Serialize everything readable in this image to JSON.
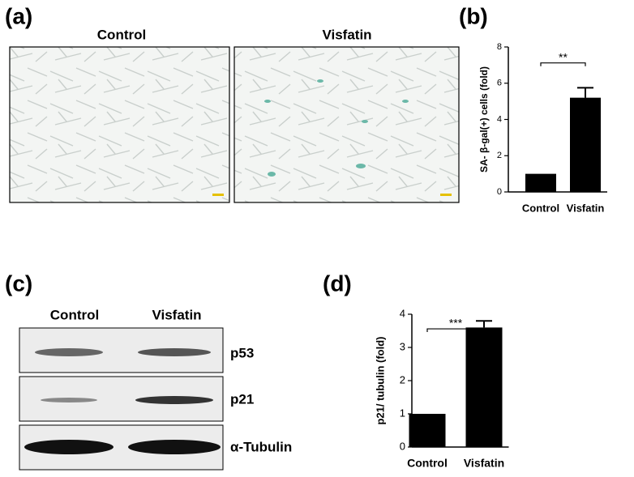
{
  "figure": {
    "panel_labels": [
      "(a)",
      "(b)",
      "(c)",
      "(d)"
    ],
    "micrograph_labels": [
      "Control",
      "Visfatin"
    ],
    "blot_columns": [
      "Control",
      "Visfatin"
    ],
    "blot_rows": [
      "p53",
      "p21",
      "α-Tubulin"
    ]
  },
  "chart_data": [
    {
      "type": "bar",
      "ylabel": "SA- β-gal(+) cells (fold)",
      "categories": [
        "Control",
        "Visfatin"
      ],
      "values": [
        1,
        5.2
      ],
      "errors": [
        null,
        0.55
      ],
      "color": "#000000",
      "ylim": [
        0,
        8
      ],
      "yticks": [
        0,
        2,
        4,
        6,
        8
      ],
      "annotation": "**"
    },
    {
      "type": "bar",
      "ylabel": "p21/ tubulin (fold)",
      "categories": [
        "Control",
        "Visfatin"
      ],
      "values": [
        1,
        3.6
      ],
      "errors": [
        null,
        0.2
      ],
      "color": "#000000",
      "ylim": [
        0,
        4
      ],
      "yticks": [
        0,
        1,
        2,
        3,
        4
      ],
      "annotation": "***"
    }
  ]
}
